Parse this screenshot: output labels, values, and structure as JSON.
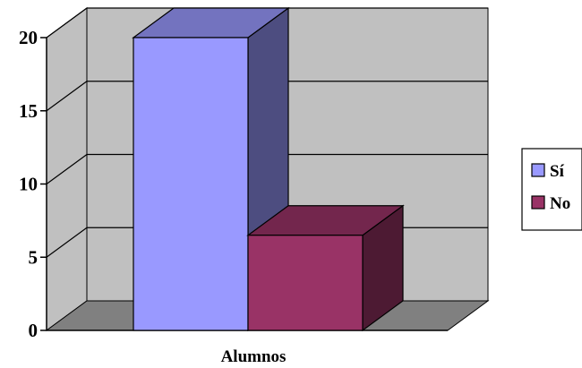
{
  "chart_data": {
    "type": "bar",
    "style": "3d-column",
    "title": "",
    "xlabel": "",
    "ylabel": "",
    "categories": [
      "Alumnos"
    ],
    "series": [
      {
        "name": "Sí",
        "values": [
          20
        ],
        "color": "#9999FF"
      },
      {
        "name": "No",
        "values": [
          6.5
        ],
        "color": "#993366"
      }
    ],
    "ylim": [
      0,
      20
    ],
    "yticks": [
      "0",
      "5",
      "10",
      "15",
      "20"
    ],
    "grid": true,
    "legend": "right",
    "wall_color": "#C0C0C0",
    "floor_color": "#808080"
  }
}
